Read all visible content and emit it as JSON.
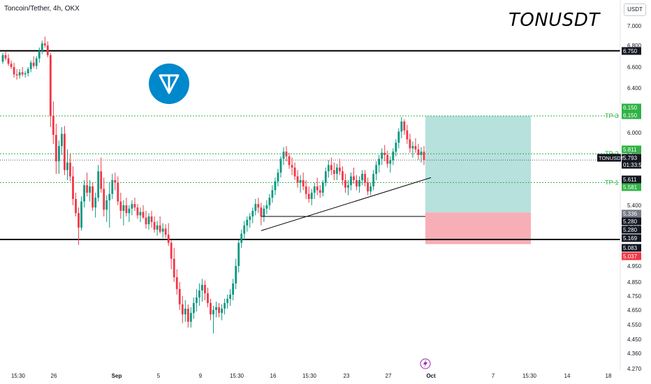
{
  "header": {
    "symbol_line": "Toncoin/Tether, 4h, OKX",
    "title": "TONUSDT",
    "currency": "USDT"
  },
  "colors": {
    "bull": "#089981",
    "bear": "#f23645",
    "ink": "#131722",
    "tp_line": "#2fb344",
    "profit_zone": "#b2dfdb",
    "loss_zone": "#f8aab2",
    "logo": "#0088cc"
  },
  "icons": {
    "logo": "toncoin-logo-icon",
    "event": "lightning-icon"
  },
  "chart_data": {
    "type": "candlestick",
    "title": "TONUSDT",
    "y_ticks": [
      "7.000",
      "6.800",
      "6.600",
      "6.400",
      "6.200",
      "6.000",
      "5.800",
      "5.600",
      "5.400",
      "5.200",
      "5.000",
      "4.950",
      "4.850",
      "4.750",
      "4.650",
      "4.550",
      "4.450",
      "4.360",
      "4.270"
    ],
    "x_ticks": [
      "15:30",
      "26",
      "Sep",
      "5",
      "9",
      "15:30",
      "16",
      "15:30",
      "23",
      "27",
      "Oct",
      "7",
      "15:30",
      "14",
      "18"
    ],
    "levels": {
      "resistance": 6.75,
      "support": 5.083
    },
    "price_labels": [
      {
        "text": "6.750",
        "kind": "black"
      },
      {
        "text": "6.150",
        "kind": "green"
      },
      {
        "text": "6.150",
        "kind": "green"
      },
      {
        "text": "5.811",
        "kind": "green"
      },
      {
        "text": "5.793",
        "kind": "black"
      },
      {
        "text": "01:33:57",
        "kind": "black"
      },
      {
        "text": "5.611",
        "kind": "black"
      },
      {
        "text": "5.581",
        "kind": "green"
      },
      {
        "text": "5.336",
        "kind": "gray"
      },
      {
        "text": "5.280",
        "kind": "black"
      },
      {
        "text": "5.280",
        "kind": "black"
      },
      {
        "text": "5.169",
        "kind": "black"
      },
      {
        "text": "5.083",
        "kind": "black"
      },
      {
        "text": "5.037",
        "kind": "red"
      }
    ],
    "symbol_tag": "TONUSDT",
    "targets": [
      {
        "label": "TP-3",
        "value": 6.15
      },
      {
        "label": "TP-2",
        "value": 5.811
      },
      {
        "label": "TP-1",
        "value": 5.581
      }
    ],
    "position": {
      "entry": 5.336,
      "take_profit": 6.15,
      "stop": 5.037
    },
    "trendline": {
      "from": {
        "x": "11 Sep",
        "y": 5.17
      },
      "to": {
        "x": "30 Sep",
        "y": 5.62
      }
    },
    "range_line": {
      "y": 5.3
    },
    "candles": [
      [
        6.65,
        6.73,
        6.63,
        6.71
      ],
      [
        6.71,
        6.74,
        6.66,
        6.68
      ],
      [
        6.68,
        6.72,
        6.61,
        6.63
      ],
      [
        6.63,
        6.66,
        6.58,
        6.6
      ],
      [
        6.6,
        6.64,
        6.5,
        6.53
      ],
      [
        6.53,
        6.58,
        6.48,
        6.52
      ],
      [
        6.52,
        6.58,
        6.49,
        6.55
      ],
      [
        6.55,
        6.6,
        6.51,
        6.53
      ],
      [
        6.53,
        6.56,
        6.5,
        6.54
      ],
      [
        6.54,
        6.6,
        6.51,
        6.58
      ],
      [
        6.58,
        6.66,
        6.55,
        6.64
      ],
      [
        6.64,
        6.7,
        6.59,
        6.61
      ],
      [
        6.61,
        6.7,
        6.58,
        6.68
      ],
      [
        6.68,
        6.78,
        6.64,
        6.75
      ],
      [
        6.75,
        6.85,
        6.72,
        6.82
      ],
      [
        6.82,
        6.89,
        6.78,
        6.8
      ],
      [
        6.8,
        6.84,
        6.69,
        6.71
      ],
      [
        6.71,
        6.73,
        6.05,
        6.15
      ],
      [
        6.15,
        6.28,
        5.9,
        5.98
      ],
      [
        5.98,
        6.08,
        5.65,
        5.75
      ],
      [
        5.75,
        5.93,
        5.65,
        5.88
      ],
      [
        5.88,
        6.05,
        5.8,
        5.99
      ],
      [
        5.99,
        6.06,
        5.64,
        5.68
      ],
      [
        5.68,
        5.85,
        5.6,
        5.74
      ],
      [
        5.74,
        5.81,
        5.59,
        5.63
      ],
      [
        5.63,
        5.71,
        5.4,
        5.45
      ],
      [
        5.45,
        5.5,
        5.3,
        5.33
      ],
      [
        5.33,
        5.38,
        5.03,
        5.2
      ],
      [
        5.2,
        5.47,
        5.17,
        5.43
      ],
      [
        5.43,
        5.6,
        5.38,
        5.56
      ],
      [
        5.56,
        5.66,
        5.47,
        5.5
      ],
      [
        5.5,
        5.6,
        5.43,
        5.55
      ],
      [
        5.55,
        5.58,
        5.35,
        5.38
      ],
      [
        5.38,
        5.5,
        5.29,
        5.46
      ],
      [
        5.46,
        5.72,
        5.43,
        5.67
      ],
      [
        5.67,
        5.78,
        5.5,
        5.53
      ],
      [
        5.53,
        5.62,
        5.3,
        5.36
      ],
      [
        5.36,
        5.48,
        5.25,
        5.44
      ],
      [
        5.44,
        5.58,
        5.2,
        5.49
      ],
      [
        5.49,
        5.65,
        5.45,
        5.6
      ],
      [
        5.6,
        5.66,
        5.52,
        5.58
      ],
      [
        5.58,
        5.63,
        5.4,
        5.43
      ],
      [
        5.43,
        5.5,
        5.28,
        5.35
      ],
      [
        5.35,
        5.44,
        5.22,
        5.4
      ],
      [
        5.4,
        5.46,
        5.3,
        5.33
      ],
      [
        5.33,
        5.4,
        5.25,
        5.37
      ],
      [
        5.37,
        5.44,
        5.31,
        5.41
      ],
      [
        5.41,
        5.46,
        5.35,
        5.38
      ],
      [
        5.38,
        5.41,
        5.28,
        5.31
      ],
      [
        5.31,
        5.38,
        5.25,
        5.34
      ],
      [
        5.34,
        5.4,
        5.28,
        5.29
      ],
      [
        5.29,
        5.35,
        5.19,
        5.23
      ],
      [
        5.23,
        5.33,
        5.18,
        5.3
      ],
      [
        5.3,
        5.35,
        5.2,
        5.25
      ],
      [
        5.25,
        5.3,
        5.15,
        5.18
      ],
      [
        5.18,
        5.26,
        5.12,
        5.22
      ],
      [
        5.22,
        5.3,
        5.14,
        5.16
      ],
      [
        5.16,
        5.24,
        5.1,
        5.19
      ],
      [
        5.19,
        5.23,
        5.1,
        5.13
      ],
      [
        5.13,
        5.24,
        5.02,
        5.05
      ],
      [
        5.05,
        5.08,
        4.93,
        4.97
      ],
      [
        4.97,
        5.0,
        4.85,
        4.88
      ],
      [
        4.88,
        4.93,
        4.76,
        4.8
      ],
      [
        4.8,
        4.85,
        4.65,
        4.69
      ],
      [
        4.69,
        4.75,
        4.56,
        4.62
      ],
      [
        4.62,
        4.72,
        4.57,
        4.66
      ],
      [
        4.66,
        4.69,
        4.53,
        4.57
      ],
      [
        4.57,
        4.67,
        4.53,
        4.63
      ],
      [
        4.63,
        4.74,
        4.59,
        4.7
      ],
      [
        4.7,
        4.8,
        4.64,
        4.74
      ],
      [
        4.74,
        4.84,
        4.68,
        4.79
      ],
      [
        4.79,
        4.87,
        4.71,
        4.83
      ],
      [
        4.83,
        4.86,
        4.72,
        4.77
      ],
      [
        4.77,
        4.81,
        4.67,
        4.7
      ],
      [
        4.7,
        4.73,
        4.58,
        4.62
      ],
      [
        4.62,
        4.68,
        4.49,
        4.65
      ],
      [
        4.65,
        4.71,
        4.6,
        4.67
      ],
      [
        4.67,
        4.7,
        4.6,
        4.63
      ],
      [
        4.63,
        4.69,
        4.58,
        4.66
      ],
      [
        4.66,
        4.73,
        4.62,
        4.7
      ],
      [
        4.7,
        4.76,
        4.66,
        4.73
      ],
      [
        4.73,
        4.8,
        4.68,
        4.76
      ],
      [
        4.76,
        4.87,
        4.72,
        4.84
      ],
      [
        4.84,
        4.97,
        4.8,
        4.95
      ],
      [
        4.95,
        5.08,
        4.91,
        5.05
      ],
      [
        5.05,
        5.18,
        5.0,
        5.14
      ],
      [
        5.14,
        5.26,
        5.08,
        5.22
      ],
      [
        5.22,
        5.3,
        5.16,
        5.27
      ],
      [
        5.27,
        5.33,
        5.2,
        5.3
      ],
      [
        5.3,
        5.38,
        5.24,
        5.35
      ],
      [
        5.35,
        5.45,
        5.31,
        5.41
      ],
      [
        5.41,
        5.46,
        5.33,
        5.38
      ],
      [
        5.38,
        5.42,
        5.22,
        5.3
      ],
      [
        5.3,
        5.4,
        5.25,
        5.37
      ],
      [
        5.37,
        5.44,
        5.32,
        5.4
      ],
      [
        5.4,
        5.49,
        5.36,
        5.46
      ],
      [
        5.46,
        5.56,
        5.42,
        5.52
      ],
      [
        5.52,
        5.62,
        5.48,
        5.59
      ],
      [
        5.59,
        5.69,
        5.55,
        5.66
      ],
      [
        5.66,
        5.79,
        5.62,
        5.77
      ],
      [
        5.77,
        5.87,
        5.72,
        5.83
      ],
      [
        5.83,
        5.88,
        5.75,
        5.79
      ],
      [
        5.79,
        5.82,
        5.69,
        5.72
      ],
      [
        5.72,
        5.78,
        5.64,
        5.7
      ],
      [
        5.7,
        5.74,
        5.6,
        5.63
      ],
      [
        5.63,
        5.68,
        5.54,
        5.58
      ],
      [
        5.58,
        5.64,
        5.5,
        5.6
      ],
      [
        5.6,
        5.66,
        5.52,
        5.55
      ],
      [
        5.55,
        5.6,
        5.45,
        5.49
      ],
      [
        5.49,
        5.55,
        5.42,
        5.45
      ],
      [
        5.45,
        5.53,
        5.4,
        5.5
      ],
      [
        5.5,
        5.58,
        5.45,
        5.55
      ],
      [
        5.55,
        5.62,
        5.48,
        5.52
      ],
      [
        5.52,
        5.56,
        5.46,
        5.5
      ],
      [
        5.5,
        5.6,
        5.47,
        5.58
      ],
      [
        5.58,
        5.7,
        5.55,
        5.67
      ],
      [
        5.67,
        5.76,
        5.62,
        5.72
      ],
      [
        5.72,
        5.78,
        5.64,
        5.68
      ],
      [
        5.68,
        5.74,
        5.6,
        5.65
      ],
      [
        5.65,
        5.73,
        5.6,
        5.7
      ],
      [
        5.7,
        5.77,
        5.64,
        5.67
      ],
      [
        5.67,
        5.71,
        5.56,
        5.6
      ],
      [
        5.6,
        5.65,
        5.5,
        5.54
      ],
      [
        5.54,
        5.6,
        5.48,
        5.56
      ],
      [
        5.56,
        5.66,
        5.52,
        5.63
      ],
      [
        5.63,
        5.7,
        5.57,
        5.6
      ],
      [
        5.6,
        5.64,
        5.52,
        5.55
      ],
      [
        5.55,
        5.63,
        5.5,
        5.6
      ],
      [
        5.6,
        5.68,
        5.56,
        5.65
      ],
      [
        5.65,
        5.68,
        5.55,
        5.58
      ],
      [
        5.58,
        5.62,
        5.48,
        5.51
      ],
      [
        5.51,
        5.58,
        5.48,
        5.55
      ],
      [
        5.55,
        5.68,
        5.52,
        5.65
      ],
      [
        5.65,
        5.75,
        5.6,
        5.72
      ],
      [
        5.72,
        5.8,
        5.66,
        5.77
      ],
      [
        5.77,
        5.86,
        5.72,
        5.82
      ],
      [
        5.82,
        5.89,
        5.75,
        5.8
      ],
      [
        5.8,
        5.84,
        5.7,
        5.73
      ],
      [
        5.73,
        5.79,
        5.66,
        5.76
      ],
      [
        5.76,
        5.86,
        5.72,
        5.83
      ],
      [
        5.83,
        5.94,
        5.79,
        5.91
      ],
      [
        5.91,
        6.04,
        5.86,
        6.01
      ],
      [
        6.01,
        6.14,
        5.95,
        6.1
      ],
      [
        6.1,
        6.12,
        5.98,
        6.02
      ],
      [
        6.02,
        6.07,
        5.9,
        5.94
      ],
      [
        5.94,
        5.99,
        5.82,
        5.86
      ],
      [
        5.86,
        5.92,
        5.78,
        5.88
      ],
      [
        5.88,
        5.95,
        5.82,
        5.85
      ],
      [
        5.85,
        5.9,
        5.76,
        5.8
      ],
      [
        5.8,
        5.87,
        5.74,
        5.83
      ],
      [
        5.83,
        5.88,
        5.72,
        5.76
      ]
    ]
  }
}
